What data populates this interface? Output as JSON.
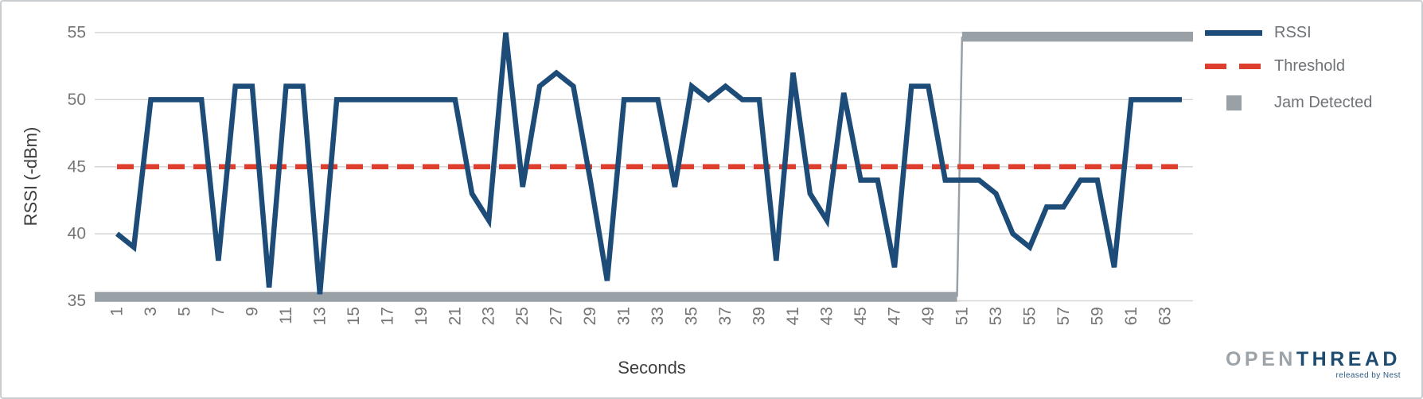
{
  "chart_data": {
    "type": "line",
    "title": "",
    "xlabel": "Seconds",
    "ylabel": "RSSI (-dBm)",
    "ylim": [
      35,
      55
    ],
    "x_range": [
      1,
      64
    ],
    "grid": "horizontal",
    "legend_position": "right",
    "xticks": [
      1,
      3,
      5,
      7,
      9,
      11,
      13,
      15,
      17,
      19,
      21,
      23,
      25,
      27,
      29,
      31,
      33,
      35,
      37,
      39,
      41,
      43,
      45,
      47,
      49,
      51,
      53,
      55,
      57,
      59,
      61,
      63
    ],
    "yticks": [
      35,
      40,
      45,
      50,
      55
    ],
    "series": [
      {
        "name": "RSSI",
        "type": "line",
        "color": "#1C4C77",
        "x_start": 1,
        "values": [
          40,
          39,
          50,
          50,
          50,
          50,
          38,
          51,
          51,
          36,
          51,
          51,
          35.5,
          50,
          50,
          50,
          50,
          50,
          50,
          50,
          50,
          43,
          41,
          55,
          43.5,
          51,
          52,
          51,
          44,
          36.5,
          50,
          50,
          50,
          43.5,
          51,
          50,
          51,
          50,
          50,
          38,
          52,
          43,
          41,
          50.5,
          44,
          44,
          37.5,
          51,
          51,
          44,
          44,
          44,
          43,
          40,
          39,
          42,
          42,
          44,
          44,
          37.5,
          50,
          50,
          50,
          50
        ]
      },
      {
        "name": "Threshold",
        "type": "horizontal-dashed-line",
        "color": "#DE3E2D",
        "value": 45
      },
      {
        "name": "Jam Detected",
        "type": "step",
        "color": "#99A1A7",
        "inactive_level": 35.3,
        "active_level": 54.7,
        "becomes_active_at": 51
      }
    ]
  },
  "legend": {
    "items": [
      {
        "label": "RSSI",
        "swatch": "line",
        "color": "#1C4C77"
      },
      {
        "label": "Threshold",
        "swatch": "dashed-line",
        "color": "#DE3E2D"
      },
      {
        "label": "Jam Detected",
        "swatch": "square",
        "color": "#99A1A7"
      }
    ]
  },
  "branding": {
    "logo_open": "OPEN",
    "logo_thread": "THREAD",
    "tagline": "released by Nest"
  },
  "style": {
    "grid_color": "#D5D5D5",
    "tick_label_color": "#757575",
    "axis_title_color": "#3E3E3E",
    "legend_text_color": "#6F7377"
  }
}
